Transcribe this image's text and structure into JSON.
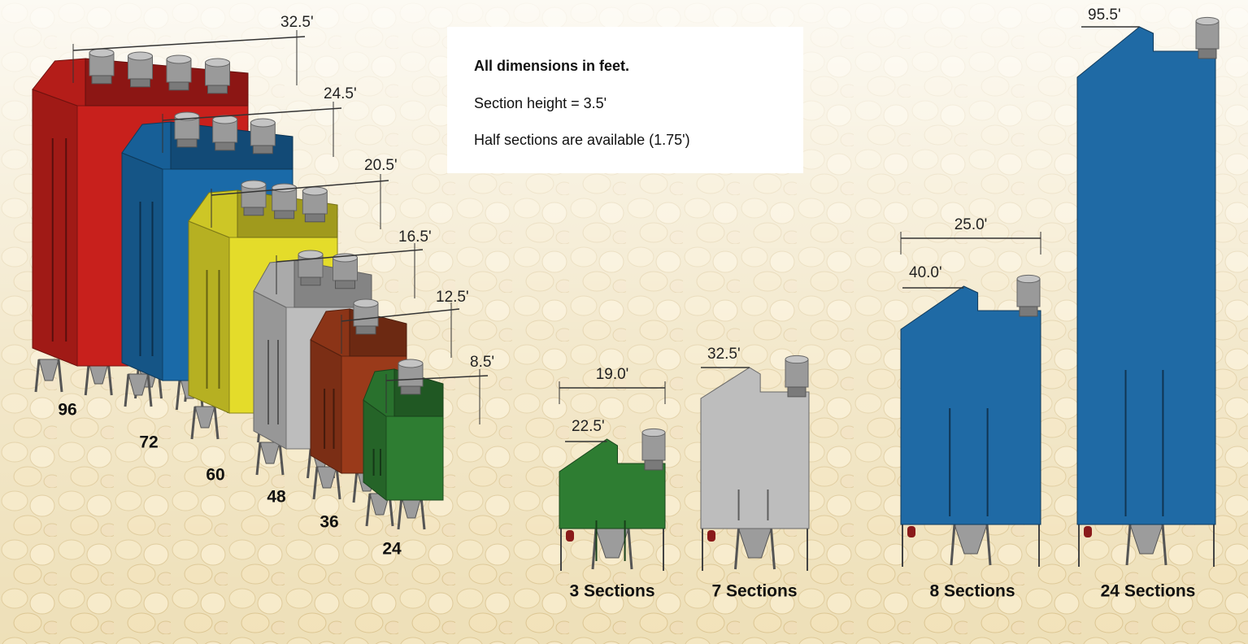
{
  "info": {
    "title": "All dimensions in feet.",
    "lines": [
      "Section height = 3.5'",
      "Half sections are available (1.75')"
    ]
  },
  "dryers": [
    {
      "model": "96",
      "width": "32.5'"
    },
    {
      "model": "72",
      "width": "24.5'"
    },
    {
      "model": "60",
      "width": "20.5'"
    },
    {
      "model": "48",
      "width": "16.5'"
    },
    {
      "model": "36",
      "width": "12.5'"
    },
    {
      "model": "24",
      "width": "8.5'"
    }
  ],
  "sections": [
    {
      "label": "3 Sections",
      "width": "19.0'",
      "height": "22.5'"
    },
    {
      "label": "7 Sections",
      "height": "32.5'"
    },
    {
      "label": "8 Sections",
      "width": "25.0'",
      "height": "40.0'"
    },
    {
      "label": "24 Sections",
      "height": "95.5'"
    }
  ]
}
